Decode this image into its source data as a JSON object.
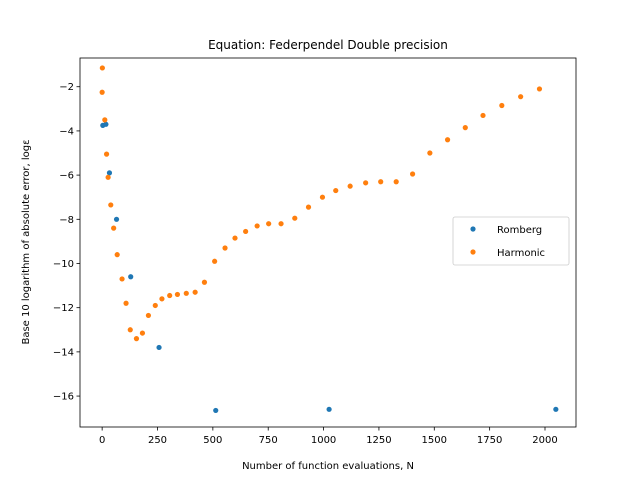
{
  "chart_data": {
    "type": "scatter",
    "title": "Equation: Federpendel Double precision",
    "xlabel": "Number of function evaluations, N",
    "ylabel": "Base 10 logarithm of absolute error, logε",
    "xlim": [
      -100,
      2140
    ],
    "ylim": [
      -17.4,
      -0.7
    ],
    "xticks": [
      0,
      250,
      500,
      750,
      1000,
      1250,
      1500,
      1750,
      2000
    ],
    "yticks": [
      -16,
      -14,
      -12,
      -10,
      -8,
      -6,
      -4,
      -2
    ],
    "grid": false,
    "legend_position": "center-right",
    "series": [
      {
        "name": "Romberg",
        "color": "#1f77b4",
        "points": [
          [
            3,
            -3.75
          ],
          [
            17,
            -3.7
          ],
          [
            33,
            -5.9
          ],
          [
            65,
            -8.0
          ],
          [
            129,
            -10.6
          ],
          [
            257,
            -13.8
          ],
          [
            513,
            -16.65
          ],
          [
            1025,
            -16.6
          ],
          [
            2049,
            -16.6
          ]
        ]
      },
      {
        "name": "Harmonic",
        "color": "#ff7f0e",
        "points": [
          [
            0,
            -2.25
          ],
          [
            1,
            -1.15
          ],
          [
            12,
            -3.5
          ],
          [
            20,
            -5.05
          ],
          [
            27,
            -6.1
          ],
          [
            39,
            -7.35
          ],
          [
            52,
            -8.4
          ],
          [
            68,
            -9.6
          ],
          [
            90,
            -10.7
          ],
          [
            108,
            -11.8
          ],
          [
            127,
            -13.0
          ],
          [
            155,
            -13.4
          ],
          [
            182,
            -13.15
          ],
          [
            209,
            -12.35
          ],
          [
            240,
            -11.9
          ],
          [
            270,
            -11.6
          ],
          [
            305,
            -11.45
          ],
          [
            340,
            -11.4
          ],
          [
            380,
            -11.35
          ],
          [
            420,
            -11.3
          ],
          [
            462,
            -10.85
          ],
          [
            508,
            -9.9
          ],
          [
            555,
            -9.3
          ],
          [
            600,
            -8.85
          ],
          [
            648,
            -8.55
          ],
          [
            700,
            -8.3
          ],
          [
            752,
            -8.2
          ],
          [
            808,
            -8.2
          ],
          [
            870,
            -7.95
          ],
          [
            932,
            -7.45
          ],
          [
            995,
            -7.0
          ],
          [
            1055,
            -6.7
          ],
          [
            1120,
            -6.5
          ],
          [
            1190,
            -6.35
          ],
          [
            1258,
            -6.3
          ],
          [
            1328,
            -6.3
          ],
          [
            1402,
            -5.95
          ],
          [
            1480,
            -5.0
          ],
          [
            1560,
            -4.4
          ],
          [
            1640,
            -3.85
          ],
          [
            1720,
            -3.3
          ],
          [
            1805,
            -2.85
          ],
          [
            1890,
            -2.45
          ],
          [
            1975,
            -2.1
          ]
        ]
      }
    ]
  }
}
